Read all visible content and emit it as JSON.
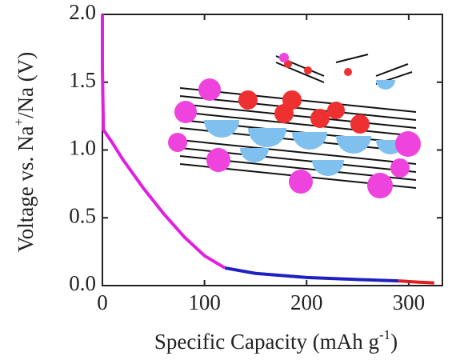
{
  "chart_data": {
    "type": "line",
    "x_label": [
      {
        "text": "Specific Capacity (mAh g"
      },
      {
        "text": "-1",
        "sup": true
      },
      {
        "text": ")"
      }
    ],
    "y_label": [
      {
        "text": "Voltage vs. Na"
      },
      {
        "text": "+",
        "sup": true
      },
      {
        "text": "/Na (V)"
      }
    ],
    "xlim": [
      0,
      333
    ],
    "xticks": [
      0,
      100,
      200,
      300
    ],
    "ylim": [
      0,
      2.0
    ],
    "yticks": [
      {
        "value": 0,
        "label": "0.0"
      },
      0.5,
      {
        "value": 1,
        "label": "1.0"
      },
      1.5,
      {
        "value": 2,
        "label": "2.0"
      }
    ],
    "series": [
      {
        "color": "#e020e0",
        "x": [
          0,
          0,
          1,
          10,
          20,
          40,
          60,
          80,
          100,
          120
        ],
        "values": [
          2.0,
          1.6,
          1.15,
          1.05,
          0.93,
          0.72,
          0.53,
          0.36,
          0.22,
          0.13
        ]
      },
      {
        "color": "#2020c0",
        "x": [
          120,
          150,
          200,
          250,
          290
        ],
        "values": [
          0.13,
          0.09,
          0.06,
          0.045,
          0.035
        ]
      },
      {
        "color": "#e02020",
        "x": [
          290,
          310,
          325
        ],
        "values": [
          0.035,
          0.025,
          0.02
        ]
      }
    ]
  }
}
